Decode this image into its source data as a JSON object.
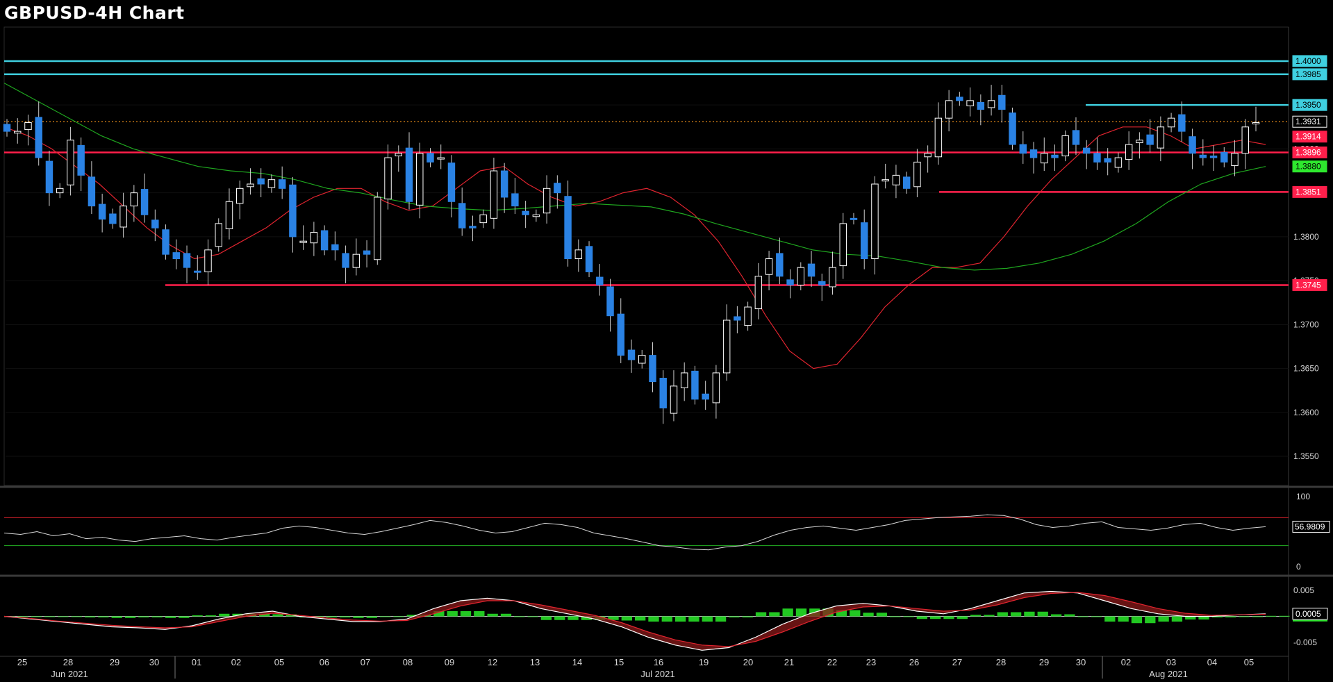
{
  "title": "GBPUSD-4H Chart",
  "colors": {
    "up_candle": "#ffffff",
    "down_candle": "#2a82e4",
    "sma_fast": "#e0242f",
    "sma_slow": "#1fa61f",
    "support_resistance": "#ff1f4b",
    "cyan_resistance": "#3fd0e0",
    "last_price": "#ff9a1a",
    "rsi_line": "#d8d8d8",
    "rsi_upper": "#d0202a",
    "rsi_lower": "#22b022",
    "macd_line": "#ffffff",
    "signal_line": "#e0242f",
    "histogram": "#22c822"
  },
  "chart_data": [
    {
      "type": "candlestick",
      "panel": "price",
      "title": "GBPUSD-4H Chart",
      "ylim": [
        1.352,
        1.403
      ],
      "y_ticks": [
        "1.3550",
        "1.3600",
        "1.3650",
        "1.3700",
        "1.3750",
        "1.3800",
        "1.3850",
        "1.3900",
        "1.3950",
        "1.4000"
      ],
      "x_day_labels": [
        "25",
        "28",
        "29",
        "30",
        "01",
        "02",
        "05",
        "06",
        "07",
        "08",
        "09",
        "12",
        "13",
        "14",
        "15",
        "16",
        "19",
        "20",
        "21",
        "22",
        "23",
        "26",
        "27",
        "28",
        "29",
        "30",
        "02",
        "03",
        "04",
        "05"
      ],
      "x_month_labels": [
        "Jun 2021",
        "Jul 2021",
        "Aug 2021"
      ],
      "close_path": [
        1.392,
        1.392,
        1.393,
        1.389,
        1.385,
        1.3855,
        1.391,
        1.387,
        1.3835,
        1.382,
        1.3815,
        1.3835,
        1.385,
        1.3825,
        1.381,
        1.378,
        1.3775,
        1.3765,
        1.376,
        1.3785,
        1.3815,
        1.384,
        1.3855,
        1.386,
        1.386,
        1.3865,
        1.3855,
        1.38,
        1.3795,
        1.3805,
        1.3785,
        1.3785,
        1.3765,
        1.378,
        1.378,
        1.3845,
        1.389,
        1.3895,
        1.384,
        1.3895,
        1.3885,
        1.389,
        1.384,
        1.381,
        1.381,
        1.3825,
        1.3875,
        1.3845,
        1.3835,
        1.3825,
        1.3825,
        1.3855,
        1.385,
        1.3775,
        1.3785,
        1.376,
        1.3745,
        1.371,
        1.3665,
        1.366,
        1.3665,
        1.3635,
        1.3605,
        1.363,
        1.3645,
        1.3615,
        1.3615,
        1.3645,
        1.3705,
        1.3705,
        1.372,
        1.3755,
        1.3775,
        1.3755,
        1.3745,
        1.3765,
        1.3755,
        1.3745,
        1.3765,
        1.3815,
        1.382,
        1.3775,
        1.386,
        1.3865,
        1.387,
        1.3855,
        1.3885,
        1.3895,
        1.3935,
        1.3955,
        1.3955,
        1.3955,
        1.3945,
        1.3955,
        1.3945,
        1.3905,
        1.3895,
        1.389,
        1.3895,
        1.389,
        1.3915,
        1.3905,
        1.3895,
        1.3885,
        1.3885,
        1.389,
        1.3905,
        1.391,
        1.3905,
        1.3925,
        1.3935,
        1.392,
        1.3895,
        1.389,
        1.389,
        1.3885,
        1.3895,
        1.3925,
        1.393
      ],
      "sma_fast": {
        "name": "",
        "values": [
          1.3925,
          1.3915,
          1.39,
          1.388,
          1.386,
          1.3835,
          1.381,
          1.379,
          1.3775,
          1.378,
          1.3795,
          1.381,
          1.383,
          1.3845,
          1.3855,
          1.3855,
          1.384,
          1.383,
          1.3835,
          1.3855,
          1.3875,
          1.388,
          1.386,
          1.3845,
          1.3835,
          1.384,
          1.385,
          1.3855,
          1.3845,
          1.3825,
          1.3795,
          1.3755,
          1.371,
          1.367,
          1.365,
          1.3655,
          1.3685,
          1.372,
          1.3745,
          1.3765,
          1.3765,
          1.377,
          1.38,
          1.3835,
          1.3865,
          1.389,
          1.3915,
          1.3925,
          1.3925,
          1.3915,
          1.39,
          1.3905,
          1.391,
          1.3905
        ]
      },
      "sma_slow": {
        "name": "",
        "values": [
          1.3975,
          1.3955,
          1.3935,
          1.3915,
          1.39,
          1.389,
          1.388,
          1.3875,
          1.3872,
          1.3865,
          1.3855,
          1.385,
          1.3842,
          1.3835,
          1.3832,
          1.383,
          1.3832,
          1.3835,
          1.3838,
          1.3836,
          1.3834,
          1.3826,
          1.3815,
          1.3805,
          1.3795,
          1.3785,
          1.378,
          1.3778,
          1.3772,
          1.3765,
          1.3762,
          1.3764,
          1.377,
          1.378,
          1.3795,
          1.3815,
          1.384,
          1.386,
          1.3872,
          1.388
        ]
      },
      "horizontal_lines": [
        {
          "label": "1.4000",
          "value": 1.4,
          "style": "cyan",
          "span": "full"
        },
        {
          "label": "1.3985",
          "value": 1.3985,
          "style": "cyan",
          "span": "full"
        },
        {
          "label": "1.3950",
          "value": 1.395,
          "style": "cyan",
          "span": "from 30"
        },
        {
          "label": "1.3931",
          "value": 1.3931,
          "style": "last-price",
          "span": "full"
        },
        {
          "label": "1.3896",
          "value": 1.3896,
          "style": "red",
          "span": "full"
        },
        {
          "label": "1.3851",
          "value": 1.3851,
          "style": "red",
          "span": "from 26"
        },
        {
          "label": "1.3745",
          "value": 1.3745,
          "style": "red",
          "span": "from 29 Jun"
        }
      ],
      "right_tags": [
        {
          "label": "1.4000",
          "value": 1.4,
          "kind": "cyan"
        },
        {
          "label": "1.3985",
          "value": 1.3985,
          "kind": "cyan"
        },
        {
          "label": "1.3950",
          "value": 1.395,
          "kind": "cyan"
        },
        {
          "label": "1.3931",
          "value": 1.3931,
          "kind": "price"
        },
        {
          "label": "1.3914",
          "value": 1.3914,
          "kind": "red-fill"
        },
        {
          "label": "1.3896",
          "value": 1.3896,
          "kind": "red"
        },
        {
          "label": "1.3880",
          "value": 1.388,
          "kind": "green-fill"
        },
        {
          "label": "1.3851",
          "value": 1.3851,
          "kind": "red"
        },
        {
          "label": "1.3745",
          "value": 1.3745,
          "kind": "red"
        }
      ]
    },
    {
      "type": "line",
      "panel": "rsi",
      "ylim": [
        -10,
        110
      ],
      "y_ticks": [
        "100",
        "0"
      ],
      "upper_band": 70,
      "lower_band": 30,
      "last_value_label": "56.9809",
      "series": [
        {
          "name": "",
          "values": [
            48,
            46,
            50,
            44,
            47,
            40,
            42,
            38,
            36,
            40,
            42,
            44,
            40,
            38,
            42,
            45,
            48,
            55,
            58,
            56,
            52,
            48,
            46,
            50,
            55,
            60,
            66,
            63,
            58,
            52,
            48,
            50,
            56,
            62,
            60,
            56,
            48,
            44,
            40,
            35,
            30,
            28,
            25,
            24,
            28,
            30,
            36,
            45,
            52,
            56,
            58,
            55,
            52,
            56,
            60,
            66,
            68,
            70,
            71,
            72,
            74,
            73,
            68,
            60,
            56,
            58,
            62,
            64,
            56,
            54,
            52,
            55,
            60,
            62,
            56,
            52,
            55,
            57
          ]
        }
      ]
    },
    {
      "type": "line",
      "panel": "macd",
      "ylim": [
        -0.007,
        0.007
      ],
      "y_ticks": [
        "0.005",
        "0.0005",
        "-0.005"
      ],
      "last_value_label": "0.0005",
      "series": [
        {
          "name": "",
          "values": [
            0.0,
            -0.0005,
            -0.001,
            -0.0015,
            -0.002,
            -0.0022,
            -0.0025,
            -0.0018,
            -0.0005,
            0.0005,
            0.001,
            0.0,
            -0.0005,
            -0.001,
            -0.001,
            -0.0005,
            0.0015,
            0.003,
            0.0035,
            0.003,
            0.0015,
            0.0005,
            -0.0005,
            -0.002,
            -0.004,
            -0.0055,
            -0.0065,
            -0.006,
            -0.004,
            -0.0015,
            0.0005,
            0.002,
            0.0025,
            0.002,
            0.001,
            0.0005,
            0.0015,
            0.003,
            0.0045,
            0.0048,
            0.0045,
            0.003,
            0.0015,
            0.0005,
            0.0,
            0.0,
            0.0003,
            0.0005
          ]
        },
        {
          "name": "",
          "values": [
            0.0,
            -0.0004,
            -0.0009,
            -0.0013,
            -0.0017,
            -0.002,
            -0.0022,
            -0.002,
            -0.001,
            0.0,
            0.0006,
            0.0002,
            -0.0003,
            -0.0007,
            -0.0009,
            -0.0008,
            0.0005,
            0.002,
            0.003,
            0.003,
            0.0022,
            0.0012,
            0.0002,
            -0.0012,
            -0.003,
            -0.0045,
            -0.0055,
            -0.0058,
            -0.0048,
            -0.003,
            -0.001,
            0.0008,
            0.0018,
            0.002,
            0.0015,
            0.001,
            0.0012,
            0.0022,
            0.0036,
            0.0044,
            0.0046,
            0.004,
            0.0028,
            0.0015,
            0.0006,
            0.0002,
            0.0003,
            0.0004
          ]
        }
      ]
    }
  ]
}
